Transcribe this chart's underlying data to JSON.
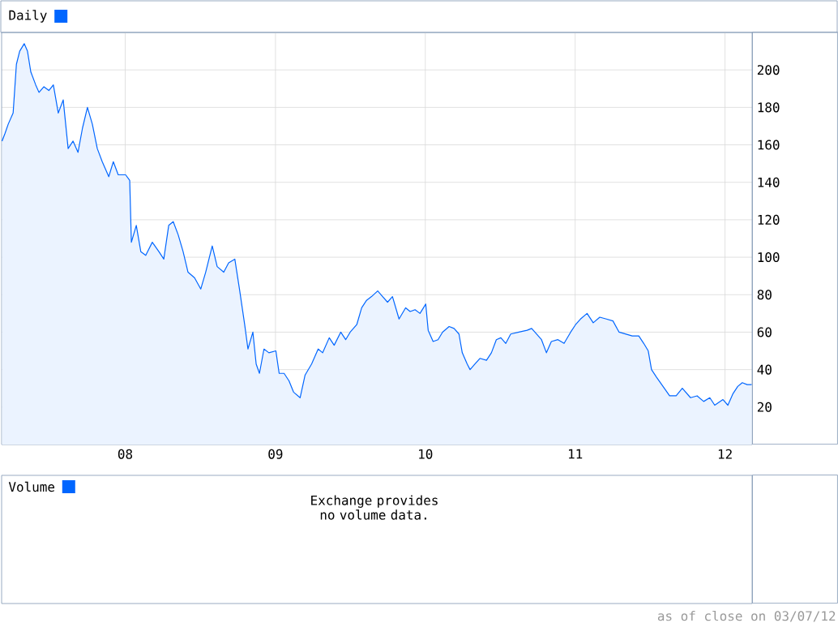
{
  "chart_data": [
    {
      "type": "area",
      "title": "Daily",
      "color": "#0066ff",
      "x": [
        "2007-03-07",
        "2007-03-14",
        "2007-03-22",
        "2007-04-03",
        "2007-04-11",
        "2007-04-19",
        "2007-04-30",
        "2007-05-08",
        "2007-05-16",
        "2007-05-28",
        "2007-06-05",
        "2007-06-17",
        "2007-06-29",
        "2007-07-10",
        "2007-07-22",
        "2007-08-03",
        "2007-08-15",
        "2007-08-27",
        "2007-09-08",
        "2007-09-19",
        "2007-10-01",
        "2007-10-13",
        "2007-10-25",
        "2007-11-06",
        "2007-11-22",
        "2007-12-03",
        "2007-12-15",
        "2008-01-02",
        "2008-01-12",
        "2008-01-16",
        "2008-01-28",
        "2008-02-08",
        "2008-02-20",
        "2008-03-07",
        "2008-03-23",
        "2008-04-04",
        "2008-04-16",
        "2008-04-27",
        "2008-05-09",
        "2008-05-21",
        "2008-06-02",
        "2008-06-18",
        "2008-07-03",
        "2008-07-15",
        "2008-07-31",
        "2008-08-12",
        "2008-08-28",
        "2008-09-09",
        "2008-09-24",
        "2008-10-06",
        "2008-10-18",
        "2008-10-26",
        "2008-11-07",
        "2008-11-15",
        "2008-11-23",
        "2008-12-04",
        "2008-12-16",
        "2009-01-02",
        "2009-01-10",
        "2009-01-22",
        "2009-02-03",
        "2009-02-14",
        "2009-03-02",
        "2009-03-14",
        "2009-03-30",
        "2009-04-15",
        "2009-04-26",
        "2009-05-12",
        "2009-05-24",
        "2009-06-09",
        "2009-06-21",
        "2009-07-02",
        "2009-07-18",
        "2009-07-30",
        "2009-08-11",
        "2009-08-23",
        "2009-09-07",
        "2009-09-19",
        "2009-10-01",
        "2009-10-13",
        "2009-10-29",
        "2009-11-14",
        "2009-11-25",
        "2009-12-07",
        "2009-12-19",
        "2010-01-02",
        "2010-01-08",
        "2010-01-20",
        "2010-02-01",
        "2010-02-12",
        "2010-02-28",
        "2010-03-12",
        "2010-03-24",
        "2010-04-01",
        "2010-04-13",
        "2010-04-20",
        "2010-05-02",
        "2010-05-14",
        "2010-05-30",
        "2010-06-11",
        "2010-06-23",
        "2010-07-04",
        "2010-07-16",
        "2010-07-28",
        "2010-08-17",
        "2010-09-06",
        "2010-09-17",
        "2010-09-29",
        "2010-10-11",
        "2010-10-23",
        "2010-11-04",
        "2010-11-20",
        "2010-12-05",
        "2010-12-21",
        "2011-01-02",
        "2011-01-14",
        "2011-01-30",
        "2011-02-14",
        "2011-03-02",
        "2011-03-18",
        "2011-04-03",
        "2011-04-18",
        "2011-05-04",
        "2011-05-20",
        "2011-06-05",
        "2011-06-17",
        "2011-06-28",
        "2011-07-06",
        "2011-07-18",
        "2011-08-03",
        "2011-08-19",
        "2011-09-04",
        "2011-09-19",
        "2011-10-09",
        "2011-10-25",
        "2011-11-10",
        "2011-11-25",
        "2011-12-07",
        "2011-12-27",
        "2012-01-08",
        "2012-01-20",
        "2012-02-01",
        "2012-02-12",
        "2012-02-24",
        "2012-03-06"
      ],
      "values": [
        162,
        166,
        171,
        177,
        203,
        210,
        214,
        210,
        199,
        192,
        188,
        191,
        189,
        192,
        177,
        184,
        158,
        162,
        156,
        169,
        180,
        171,
        158,
        151,
        143,
        151,
        144,
        144,
        141,
        108,
        117,
        103,
        101,
        108,
        103,
        99,
        117,
        119,
        112,
        103,
        92,
        89,
        83,
        92,
        106,
        95,
        92,
        97,
        99,
        82,
        64,
        51,
        60,
        43,
        38,
        51,
        49,
        50,
        38,
        38,
        34,
        28,
        25,
        37,
        43,
        51,
        49,
        57,
        53,
        60,
        56,
        60,
        64,
        73,
        77,
        79,
        82,
        79,
        76,
        79,
        67,
        73,
        71,
        72,
        70,
        75,
        61,
        55,
        56,
        60,
        63,
        62,
        59,
        49,
        43,
        40,
        43,
        46,
        45,
        49,
        56,
        57,
        54,
        59,
        60,
        61,
        62,
        59,
        56,
        49,
        55,
        56,
        54,
        60,
        64,
        67,
        70,
        65,
        68,
        67,
        66,
        60,
        59,
        58,
        58,
        54,
        50,
        40,
        36,
        31,
        26,
        26,
        30,
        25,
        26,
        23,
        25,
        21,
        24,
        21,
        27,
        31,
        33,
        32,
        32
      ],
      "xlim": [
        "2007-03-06",
        "2012-03-07"
      ],
      "xticks": [
        {
          "value": "2008-01-01",
          "label": "08"
        },
        {
          "value": "2009-01-01",
          "label": "09"
        },
        {
          "value": "2010-01-01",
          "label": "10"
        },
        {
          "value": "2011-01-01",
          "label": "11"
        },
        {
          "value": "2012-01-01",
          "label": "12"
        }
      ],
      "ylim": [
        0,
        220
      ],
      "yticks": [
        20,
        40,
        60,
        80,
        100,
        120,
        140,
        160,
        180,
        200
      ],
      "grid": true,
      "annotations": [
        "as of close on 03/07/12"
      ]
    },
    {
      "type": "other",
      "title": "Volume",
      "annotations": [
        "Exchange provides no volume data."
      ]
    }
  ]
}
